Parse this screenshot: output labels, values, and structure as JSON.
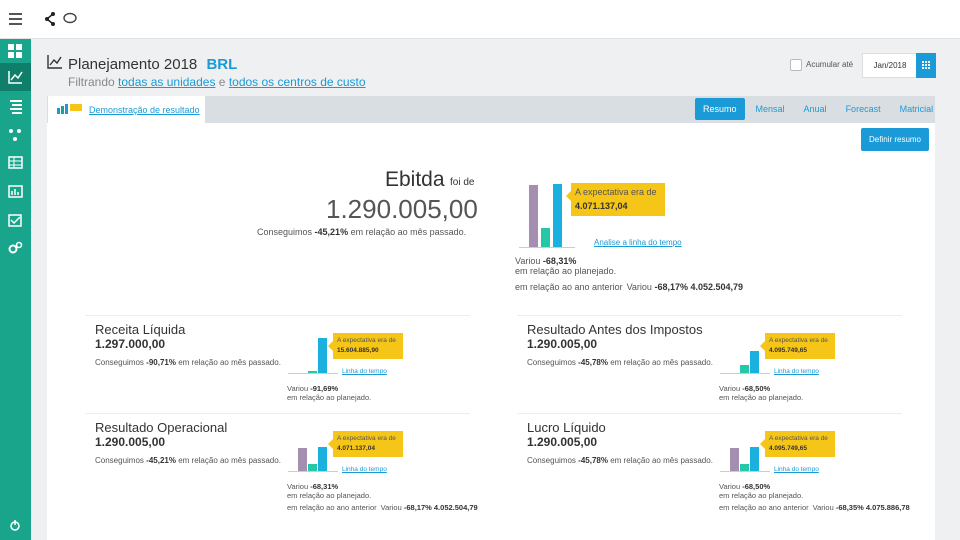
{
  "header": {
    "title": "Planejamento 2018",
    "currency": "BRL",
    "filter": {
      "prefix": "Filtrando",
      "units": "todas as unidades",
      "conjunction": "e",
      "cost_centers": "todos os centros de custo"
    },
    "accumulate": "Acumular até",
    "date": "Jan/2018"
  },
  "tab": "Demonstração de resultado",
  "views": [
    "Resumo",
    "Mensal",
    "Anual",
    "Forecast",
    "Matricial"
  ],
  "define_button": "Definir resumo",
  "main": {
    "name": "Ebitda",
    "qualifier": "foi de",
    "value": "1.290.005,00",
    "achieved": [
      "Conseguimos",
      "-45,21%",
      "em relação ao mês passado."
    ],
    "expectation": [
      "A expectativa era de",
      "4.071.137,04"
    ],
    "link": "Analise a linha do tempo",
    "variation_plan": [
      "Variou",
      "-68,31%",
      "em relação ao planejado."
    ],
    "variation_year": [
      "Variou",
      "-68,17%",
      "em relação ao ano anterior",
      "4.052.504,79"
    ]
  },
  "cards": [
    {
      "name": "Receita Líquida",
      "value": "1.297.000,00",
      "achieved": [
        "Conseguimos",
        "-90,71%",
        "em relação ao mês passado."
      ],
      "expectation": [
        "A expectativa era de",
        "15.604.885,90"
      ],
      "link": "Linha do tempo",
      "variation_plan": [
        "Variou",
        "-91,69%",
        "em relação ao planejado."
      ]
    },
    {
      "name": "Resultado Antes dos Impostos",
      "value": "1.290.005,00",
      "achieved": [
        "Conseguimos",
        "-45,78%",
        "em relação ao mês passado."
      ],
      "expectation": [
        "A expectativa era de",
        "4.095.749,65"
      ],
      "link": "Linha do tempo",
      "variation_plan": [
        "Variou",
        "-68,50%",
        "em relação ao planejado."
      ]
    },
    {
      "name": "Resultado Operacional",
      "value": "1.290.005,00",
      "achieved": [
        "Conseguimos",
        "-45,21%",
        "em relação ao mês passado."
      ],
      "expectation": [
        "A expectativa era de",
        "4.071.137,04"
      ],
      "link": "Linha do tempo",
      "variation_plan": [
        "Variou",
        "-68,31%",
        "em relação ao planejado."
      ],
      "variation_year": [
        "Variou",
        "-68,17%",
        "em relação ao ano anterior",
        "4.052.504,79"
      ]
    },
    {
      "name": "Lucro Líquido",
      "value": "1.290.005,00",
      "achieved": [
        "Conseguimos",
        "-45,78%",
        "em relação ao mês passado."
      ],
      "expectation": [
        "A expectativa era de",
        "4.095.749,65"
      ],
      "link": "Linha do tempo",
      "variation_plan": [
        "Variou",
        "-68,50%",
        "em relação ao planejado."
      ],
      "variation_year": [
        "Variou",
        "-68,35%",
        "em relação ao ano anterior",
        "4.075.886,78"
      ]
    }
  ]
}
